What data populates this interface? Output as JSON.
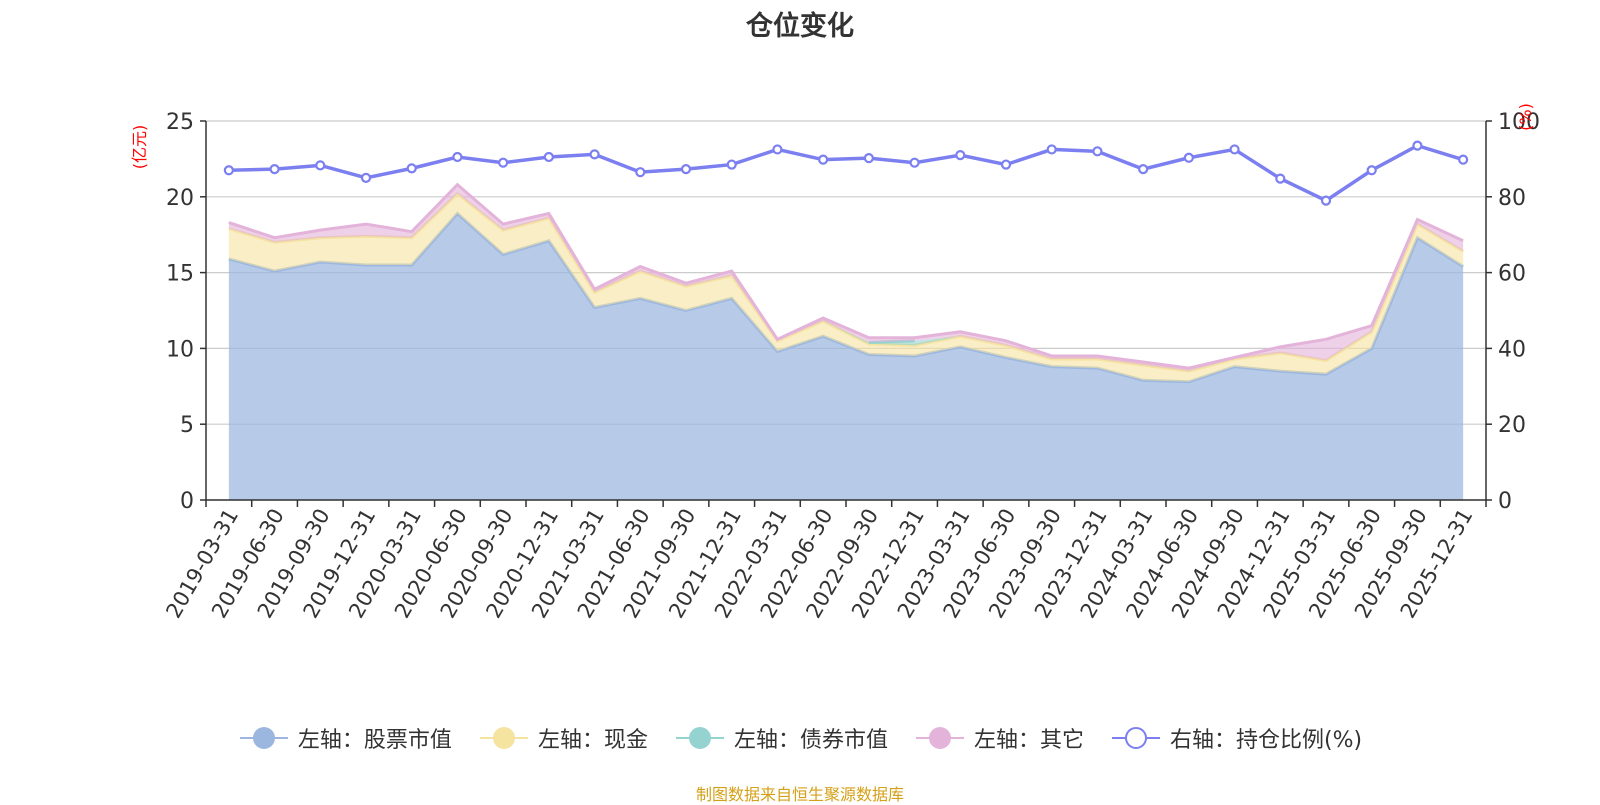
{
  "chart_data": {
    "type": "area",
    "title": "仓位变化",
    "left_axis": {
      "unit_label": "(亿元)",
      "min": 0,
      "max": 25,
      "ticks": [
        "0",
        "5",
        "10",
        "15",
        "20",
        "25"
      ]
    },
    "right_axis": {
      "unit_label": "(%)",
      "min": 0,
      "max": 100,
      "ticks": [
        "0",
        "20",
        "40",
        "60",
        "80",
        "100"
      ]
    },
    "categories": [
      "2019-03-31",
      "2019-06-30",
      "2019-09-30",
      "2019-12-31",
      "2020-03-31",
      "2020-06-30",
      "2020-09-30",
      "2020-12-31",
      "2021-03-31",
      "2021-06-30",
      "2021-09-30",
      "2021-12-31",
      "2022-03-31",
      "2022-06-30",
      "2022-09-30",
      "2022-12-31",
      "2023-03-31",
      "2023-06-30",
      "2023-09-30",
      "2023-12-31",
      "2024-03-31",
      "2024-06-30",
      "2024-09-30",
      "2024-12-31",
      "2025-03-31",
      "2025-06-30",
      "2025-09-30",
      "2025-12-31"
    ],
    "series": [
      {
        "name": "左轴：股票市值",
        "axis": "left",
        "stacked": true,
        "color": "#9bb7e0",
        "values": [
          15.9,
          15.1,
          15.7,
          15.5,
          15.5,
          18.9,
          16.2,
          17.1,
          12.7,
          13.3,
          12.5,
          13.3,
          9.8,
          10.8,
          9.6,
          9.5,
          10.1,
          9.4,
          8.8,
          8.7,
          7.9,
          7.8,
          8.8,
          8.5,
          8.3,
          10.0,
          17.3,
          15.4
        ]
      },
      {
        "name": "左轴：现金",
        "axis": "left",
        "stacked": true,
        "color": "#f5e3a0",
        "values": [
          2.0,
          1.9,
          1.6,
          1.9,
          1.8,
          1.3,
          1.6,
          1.5,
          1.0,
          1.8,
          1.6,
          1.5,
          0.7,
          1.0,
          0.7,
          0.7,
          0.7,
          0.8,
          0.5,
          0.6,
          1.0,
          0.7,
          0.5,
          1.2,
          0.9,
          1.1,
          0.9,
          1.0
        ]
      },
      {
        "name": "左轴：债券市值",
        "axis": "left",
        "stacked": true,
        "color": "#95d3d0",
        "values": [
          0,
          0,
          0,
          0,
          0,
          0,
          0,
          0,
          0,
          0,
          0,
          0,
          0,
          0,
          0.1,
          0.3,
          0,
          0,
          0,
          0,
          0,
          0,
          0,
          0,
          0,
          0,
          0,
          0
        ]
      },
      {
        "name": "左轴：其它",
        "axis": "left",
        "stacked": true,
        "color": "#e3b3da",
        "values": [
          0.4,
          0.3,
          0.5,
          0.8,
          0.4,
          0.6,
          0.4,
          0.3,
          0.2,
          0.3,
          0.2,
          0.3,
          0.1,
          0.2,
          0.3,
          0.2,
          0.3,
          0.3,
          0.2,
          0.2,
          0.2,
          0.2,
          0.1,
          0.4,
          1.4,
          0.4,
          0.3,
          0.7
        ]
      },
      {
        "name": "右轴：持仓比例(%)",
        "axis": "right",
        "type": "line",
        "color": "#7b7ff0",
        "values": [
          87.0,
          87.3,
          88.3,
          85.0,
          87.5,
          90.5,
          89.0,
          90.5,
          91.2,
          86.5,
          87.3,
          88.5,
          92.5,
          89.8,
          90.2,
          89.0,
          91.0,
          88.5,
          92.5,
          92.0,
          87.3,
          90.3,
          92.5,
          84.8,
          79.0,
          87.0,
          93.5,
          89.8
        ]
      }
    ]
  },
  "source": {
    "text": "制图数据来自恒生聚源数据库",
    "color": "#d4a017"
  }
}
